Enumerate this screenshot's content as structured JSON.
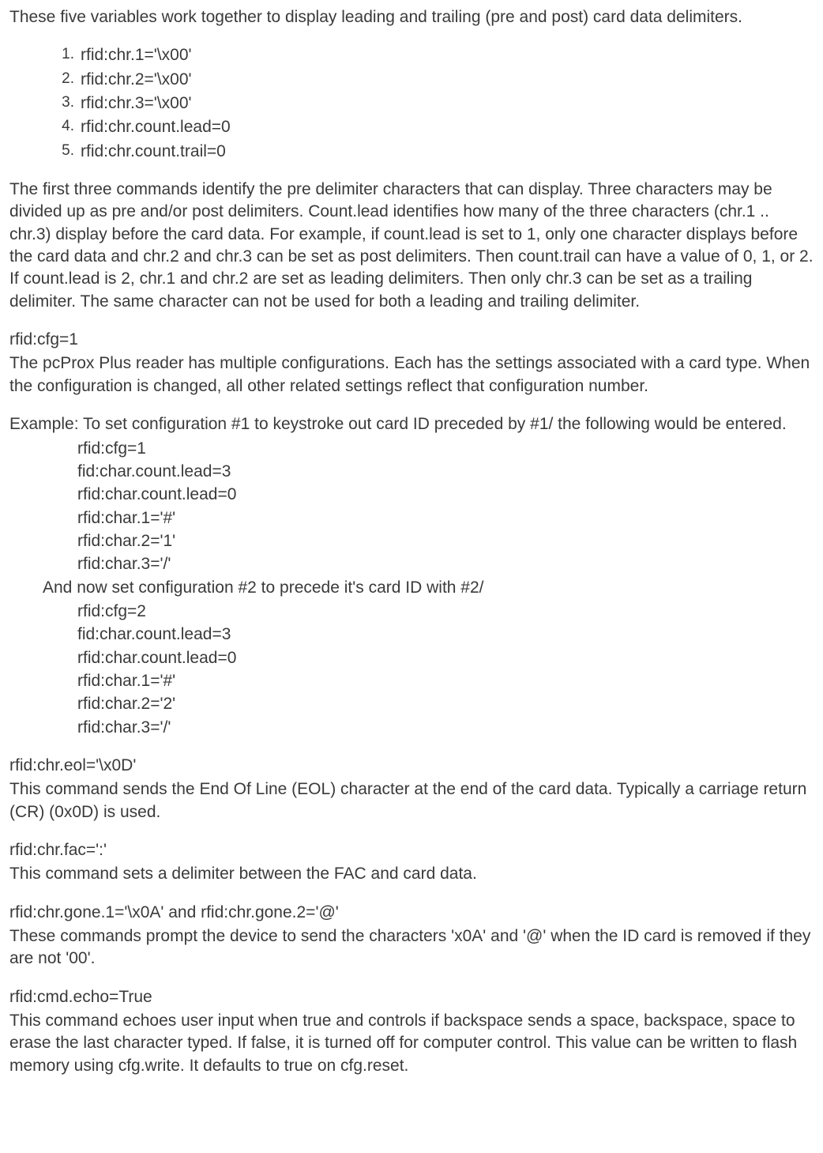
{
  "intro": "These five variables work together to display leading and trailing (pre and post) card data delimiters.",
  "numbered": [
    {
      "n": "1.",
      "t": "rfid:chr.1='\\x00'"
    },
    {
      "n": "2.",
      "t": "rfid:chr.2='\\x00'"
    },
    {
      "n": "3.",
      "t": "rfid:chr.3='\\x00'"
    },
    {
      "n": "4.",
      "t": "rfid:chr.count.lead=0"
    },
    {
      "n": "5.",
      "t": "rfid:chr.count.trail=0"
    }
  ],
  "para1": "The first three commands identify the pre delimiter characters that can display. Three characters may be divided up as pre and/or post delimiters. Count.lead identifies how many of the three characters (chr.1 .. chr.3) display before the card data. For example, if count.lead is set to 1, only one character displays before the card data and chr.2 and chr.3 can be set as post delimiters. Then count.trail can have a value of 0, 1, or 2. If count.lead is 2, chr.1 and chr.2 are set as leading delimiters. Then only chr.3 can be set as a trailing delimiter. The same character can not be used for both a leading and trailing delimiter.",
  "cfg": {
    "title": "rfid:cfg=1",
    "body": "The pcProx Plus reader has multiple configurations. Each has the settings associated with a card type. When the configuration is changed, all other related settings reflect that configuration number."
  },
  "example": {
    "lead": "Example: To set configuration #1 to keystroke out card ID preceded by #1/  the following would be entered.",
    "block1": [
      "rfid:cfg=1",
      "fid:char.count.lead=3",
      "rfid:char.count.lead=0",
      "rfid:char.1='#'",
      "rfid:char.2='1'",
      "rfid:char.3='/'"
    ],
    "mid": "And now set configuration #2 to precede it's card ID with #2/",
    "block2": [
      "rfid:cfg=2",
      "fid:char.count.lead=3",
      "rfid:char.count.lead=0",
      "rfid:char.1='#'",
      "rfid:char.2='2'",
      "rfid:char.3='/'"
    ]
  },
  "eol": {
    "title": "rfid:chr.eol='\\x0D'",
    "body": "This command sends the End Of Line (EOL) character at the end of the card data. Typically a carriage return (CR) (0x0D) is used."
  },
  "fac": {
    "title": "rfid:chr.fac=':'",
    "body": "This command sets a delimiter between the FAC and card data."
  },
  "gone": {
    "title": "rfid:chr.gone.1='\\x0A' and rfid:chr.gone.2='@'",
    "body": "These commands prompt the device to send the characters 'x0A' and '@' when the ID card is removed if they are not '00'."
  },
  "echo": {
    "title": "rfid:cmd.echo=True",
    "body": "This command echoes user input when true and controls if backspace sends a space, backspace, space to erase the last character typed. If false, it is turned off for computer control. This value can be written to flash memory using cfg.write. It defaults to true on cfg.reset."
  }
}
